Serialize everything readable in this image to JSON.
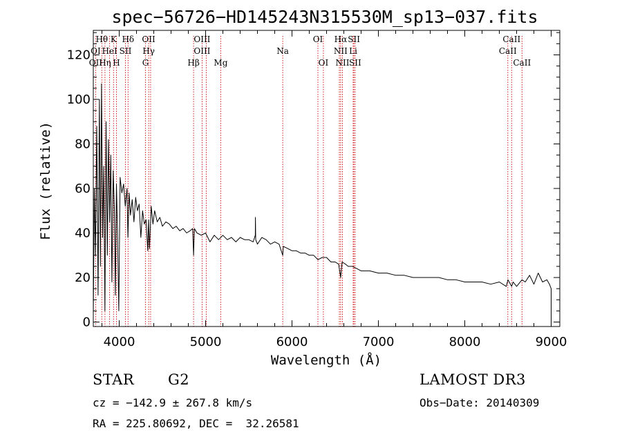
{
  "chart_data": {
    "type": "line",
    "title": "spec−56726−HD145243N315530M_sp13−037.fits",
    "xlabel": "Wavelength (Å)",
    "ylabel": "Flux (relative)",
    "xlim": [
      3700,
      9100
    ],
    "ylim": [
      -2,
      131
    ],
    "xticks": [
      4000,
      5000,
      6000,
      7000,
      8000,
      9000
    ],
    "xtick_labels": [
      "4000",
      "5000",
      "6000",
      "7000",
      "8000",
      "9000"
    ],
    "yticks": [
      0,
      20,
      40,
      60,
      80,
      100,
      120
    ],
    "ytick_labels": [
      "0",
      "20",
      "40",
      "60",
      "80",
      "100",
      "120"
    ],
    "grid": false,
    "series": [
      {
        "name": "spectrum",
        "x": [
          3700,
          3712,
          3725,
          3740,
          3755,
          3770,
          3782,
          3795,
          3808,
          3820,
          3834,
          3848,
          3862,
          3875,
          3889,
          3902,
          3915,
          3930,
          3945,
          3955,
          3968,
          3980,
          3995,
          4010,
          4030,
          4050,
          4070,
          4090,
          4101,
          4115,
          4130,
          4150,
          4170,
          4190,
          4210,
          4230,
          4250,
          4270,
          4290,
          4310,
          4330,
          4340,
          4350,
          4370,
          4390,
          4410,
          4440,
          4470,
          4500,
          4540,
          4580,
          4620,
          4660,
          4700,
          4740,
          4780,
          4820,
          4850,
          4861,
          4870,
          4900,
          4950,
          5000,
          5050,
          5100,
          5150,
          5200,
          5250,
          5300,
          5350,
          5400,
          5450,
          5500,
          5550,
          5575,
          5577,
          5580,
          5600,
          5650,
          5700,
          5750,
          5800,
          5850,
          5893,
          5900,
          5950,
          6000,
          6050,
          6100,
          6150,
          6200,
          6250,
          6300,
          6350,
          6400,
          6450,
          6500,
          6540,
          6563,
          6580,
          6620,
          6650,
          6700,
          6750,
          6800,
          6900,
          7000,
          7100,
          7200,
          7300,
          7400,
          7500,
          7600,
          7700,
          7800,
          7900,
          8000,
          8100,
          8200,
          8300,
          8400,
          8480,
          8500,
          8542,
          8560,
          8600,
          8662,
          8700,
          8750,
          8800,
          8850,
          8900,
          8950,
          8980,
          9000,
          9000
        ],
        "y": [
          3,
          60,
          30,
          88,
          12,
          100,
          25,
          107,
          38,
          70,
          5,
          90,
          30,
          82,
          45,
          75,
          18,
          68,
          50,
          12,
          62,
          40,
          5,
          65,
          58,
          62,
          52,
          60,
          38,
          58,
          48,
          55,
          45,
          56,
          50,
          53,
          38,
          50,
          44,
          46,
          32,
          46,
          33,
          52,
          44,
          50,
          45,
          47,
          43,
          45,
          44,
          42,
          43,
          41,
          42,
          40,
          41,
          42,
          30,
          42,
          40,
          39,
          40,
          36,
          39,
          37,
          39,
          37,
          38,
          36,
          38,
          37,
          37,
          36,
          39,
          47,
          37,
          35,
          38,
          37,
          35,
          36,
          35,
          30,
          34,
          33,
          32,
          32,
          31,
          31,
          30,
          30,
          28,
          29,
          29,
          27,
          27,
          26,
          20,
          27,
          26,
          25,
          25,
          24,
          23,
          23,
          22,
          22,
          21,
          21,
          20,
          20,
          20,
          20,
          19,
          19,
          18,
          18,
          18,
          17,
          18,
          16,
          19,
          16,
          18,
          16,
          19,
          18,
          21,
          17,
          22,
          18,
          19,
          17,
          15,
          0
        ]
      }
    ],
    "line_labels": [
      {
        "name": "Hθ",
        "wavelength": 3798,
        "row": 0
      },
      {
        "name": "K",
        "wavelength": 3934,
        "row": 0
      },
      {
        "name": "Hδ",
        "wavelength": 4102,
        "row": 0
      },
      {
        "name": "OII",
        "wavelength": 4341,
        "row": 0
      },
      {
        "name": "OIII",
        "wavelength": 4959,
        "row": 0
      },
      {
        "name": "OI",
        "wavelength": 6300,
        "row": 0
      },
      {
        "name": "Hα",
        "wavelength": 6563,
        "row": 0
      },
      {
        "name": "SII",
        "wavelength": 6717,
        "row": 0
      },
      {
        "name": "CaII",
        "wavelength": 8542,
        "row": 0
      },
      {
        "name": "OI",
        "wavelength": 3727,
        "row": 1
      },
      {
        "name": "HeI",
        "wavelength": 3889,
        "row": 1
      },
      {
        "name": "SII",
        "wavelength": 4072,
        "row": 1
      },
      {
        "name": "Hγ",
        "wavelength": 4341,
        "row": 1
      },
      {
        "name": "OIII",
        "wavelength": 4959,
        "row": 1
      },
      {
        "name": "Na",
        "wavelength": 5893,
        "row": 1
      },
      {
        "name": "NII",
        "wavelength": 6563,
        "row": 1
      },
      {
        "name": "Li",
        "wavelength": 6708,
        "row": 1
      },
      {
        "name": "CaII",
        "wavelength": 8498,
        "row": 1
      },
      {
        "name": "OII",
        "wavelength": 3727,
        "row": 2
      },
      {
        "name": "Hη",
        "wavelength": 3835,
        "row": 2
      },
      {
        "name": "H",
        "wavelength": 3968,
        "row": 2
      },
      {
        "name": "G",
        "wavelength": 4305,
        "row": 2
      },
      {
        "name": "Hβ",
        "wavelength": 4861,
        "row": 2
      },
      {
        "name": "Mg",
        "wavelength": 5175,
        "row": 2
      },
      {
        "name": "OI",
        "wavelength": 6363,
        "row": 2
      },
      {
        "name": "NII",
        "wavelength": 6584,
        "row": 2
      },
      {
        "name": "SII",
        "wavelength": 6731,
        "row": 2
      },
      {
        "name": "CaII",
        "wavelength": 8662,
        "row": 2
      }
    ],
    "marker_lines": [
      3727,
      3798,
      3835,
      3889,
      3934,
      3968,
      4072,
      4102,
      4305,
      4341,
      4363,
      4861,
      4959,
      5007,
      5175,
      5893,
      6300,
      6363,
      6548,
      6563,
      6584,
      6708,
      6717,
      6731,
      8498,
      8542,
      8662
    ],
    "colors": {
      "marker_line": "#cc0000",
      "spectrum": "#000000"
    }
  },
  "info": {
    "object_class": "STAR",
    "subclass": "G2",
    "survey": "LAMOST DR3",
    "redshift": "cz = −142.9 ± 267.8 km/s",
    "obs_date": "Obs−Date: 20140309",
    "coords": "RA = 225.80692, DEC =  32.26581"
  }
}
